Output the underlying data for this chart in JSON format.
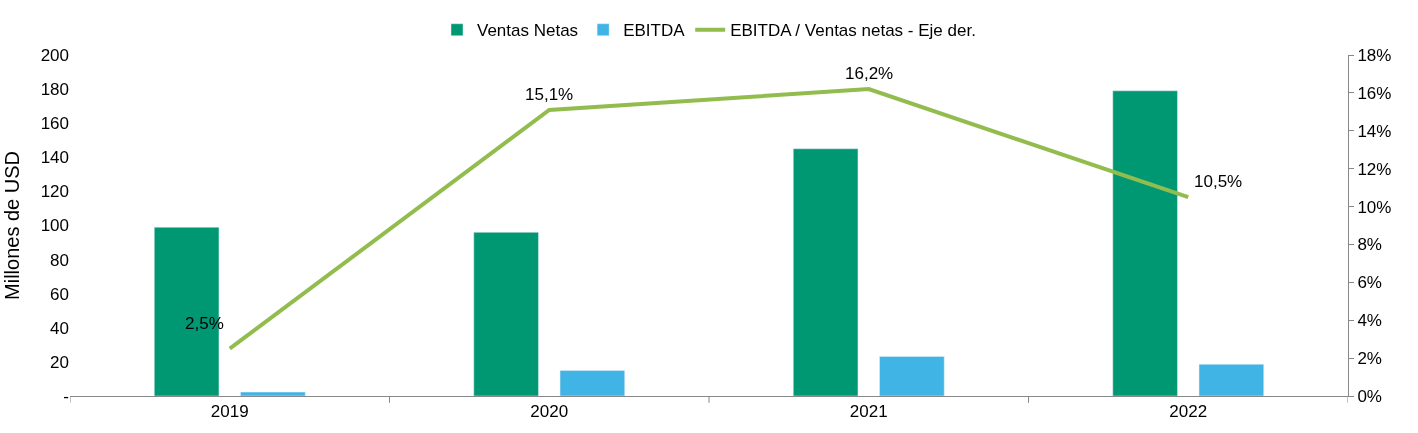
{
  "chart_data": {
    "type": "bar",
    "categories": [
      "2019",
      "2020",
      "2021",
      "2022"
    ],
    "ylabel": "Millones de USD",
    "series": [
      {
        "name": "Ventas Netas",
        "color": "#009873",
        "values": [
          99,
          96,
          145,
          179
        ]
      },
      {
        "name": "EBITDA",
        "color": "#41b4e6",
        "values": [
          2.3,
          15,
          23.2,
          18.6
        ]
      },
      {
        "name": "EBITDA / Ventas netas - Eje der.",
        "type": "line",
        "axis": "y2",
        "color": "#92bd4e",
        "marker": "none",
        "values": [
          2.5,
          15.1,
          16.2,
          10.5
        ],
        "value_labels": [
          "2,5%",
          "15,1%",
          "16,2%",
          "10,5%"
        ]
      }
    ],
    "ylim": [
      0,
      200
    ],
    "yticks": [
      {
        "value": 0,
        "label": "-"
      },
      20,
      40,
      60,
      80,
      100,
      120,
      140,
      160,
      180,
      200
    ],
    "y2lim": [
      0,
      18
    ],
    "y2ticks": [
      {
        "value": 0,
        "label": "0%"
      },
      {
        "value": 2,
        "label": "2%"
      },
      {
        "value": 4,
        "label": "4%"
      },
      {
        "value": 6,
        "label": "6%"
      },
      {
        "value": 8,
        "label": "8%"
      },
      {
        "value": 10,
        "label": "10%"
      },
      {
        "value": 12,
        "label": "12%"
      },
      {
        "value": 14,
        "label": "14%"
      },
      {
        "value": 16,
        "label": "16%"
      },
      {
        "value": 18,
        "label": "18%"
      }
    ],
    "legend": "top"
  }
}
